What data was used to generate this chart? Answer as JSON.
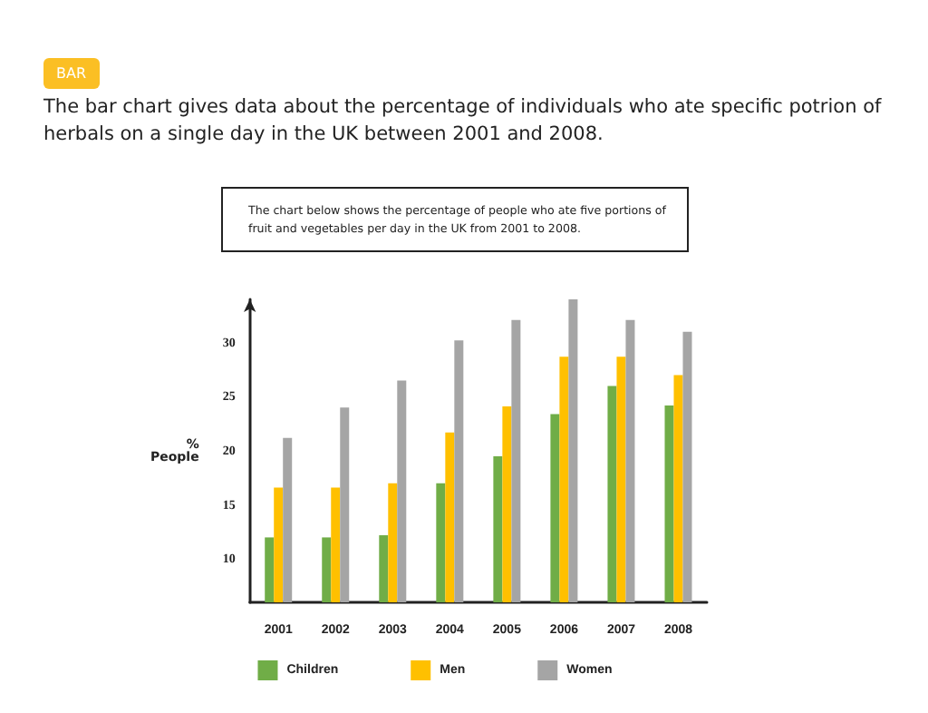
{
  "chart_data": {
    "type": "bar",
    "annotations": [
      "BAR"
    ],
    "title": "The bar chart gives data about the percentage of individuals who ate specific potrion of herbals on a single day in the UK between 2001 and 2008.",
    "subtitle": "The chart below shows the percentage of people who ate five portions of fruit and vegetables per day in the UK from 2001 to 2008.",
    "ylabel": "%\nPeople",
    "categories": [
      "2001",
      "2002",
      "2003",
      "2004",
      "2005",
      "2006",
      "2007",
      "2008"
    ],
    "series": [
      {
        "name": "Children",
        "color": "#70ad47",
        "values": [
          12,
          12,
          12.2,
          17,
          19.5,
          23.4,
          26,
          24.2
        ]
      },
      {
        "name": "Men",
        "color": "#ffc000",
        "values": [
          16.6,
          16.6,
          17,
          21.7,
          24.1,
          28.7,
          28.7,
          27
        ]
      },
      {
        "name": "Women",
        "color": "#a5a5a5",
        "values": [
          21.2,
          24,
          26.5,
          30.2,
          32.1,
          34,
          32.1,
          31
        ]
      }
    ],
    "ylim": [
      6,
      34
    ],
    "yticks": [
      10,
      15,
      20,
      25,
      30
    ],
    "grid": false,
    "legend": "bottom"
  }
}
